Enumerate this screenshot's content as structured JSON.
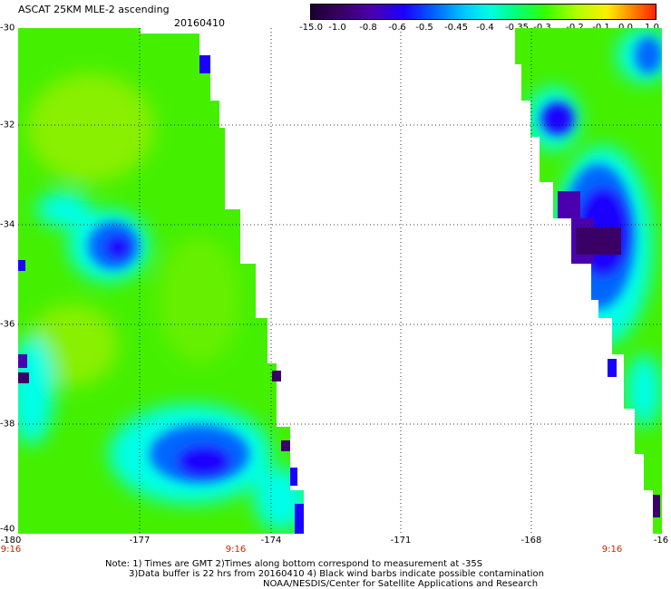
{
  "header": {
    "title": "ASCAT 25KM MLE-2 ascending",
    "date": "20160410"
  },
  "colorbar": {
    "labels": [
      "-15.0",
      "-1.0",
      "-0.8",
      "-0.6",
      "-0.5",
      "-0.45",
      "-0.4",
      "-0.35",
      "-0.3",
      "-0.2",
      "-0.1",
      "0.0",
      "1.0"
    ]
  },
  "axes": {
    "lat_labels": [
      "-30",
      "-32",
      "-34",
      "-36",
      "-38",
      "-40"
    ],
    "lon_labels": [
      "-180",
      "-177",
      "-174",
      "-171",
      "-168",
      "-16"
    ]
  },
  "times": [
    "9:16",
    "9:16",
    "9:16"
  ],
  "notes": [
    "Note: 1) Times are GMT 2)Times along bottom correspond to measurement at -35S",
    "3)Data buffer is 22 hrs from 20160410 4) Black wind barbs indicate possible contamination",
    "NOAA/NESDIS/Center for Satellite Applications and Research"
  ],
  "colors": {
    "green": "#44f000",
    "lime": "#88f000",
    "cyan": "#00ffe8",
    "blue": "#1a00ff",
    "purple": "#3a0066"
  }
}
